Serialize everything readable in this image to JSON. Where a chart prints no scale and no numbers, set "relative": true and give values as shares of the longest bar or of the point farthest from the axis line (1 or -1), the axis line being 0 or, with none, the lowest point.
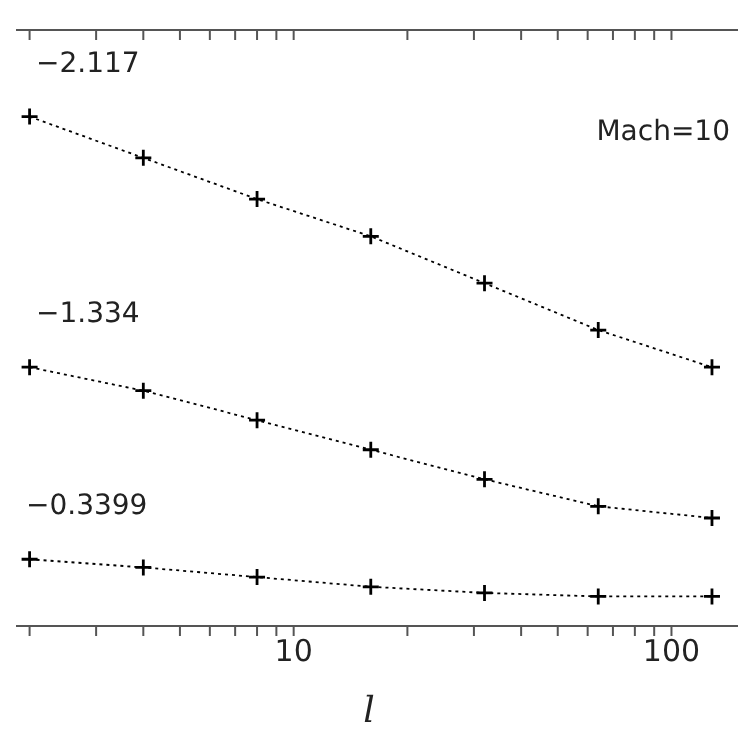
{
  "chart_data": {
    "type": "line",
    "xlabel": "l",
    "log": "x",
    "relative": true,
    "marker": "cross",
    "line_style": "dotted",
    "tick_labels": "x",
    "x": [
      2,
      4,
      8,
      16,
      32,
      64,
      128
    ],
    "xlim": [
      1.67,
      150
    ],
    "xticks": [
      {
        "value": 2,
        "label": null
      },
      {
        "value": 3,
        "label": null
      },
      {
        "value": 4,
        "label": null
      },
      {
        "value": 5,
        "label": null
      },
      {
        "value": 6,
        "label": null
      },
      {
        "value": 7,
        "label": null
      },
      {
        "value": 8,
        "label": null
      },
      {
        "value": 9,
        "label": null
      },
      10,
      {
        "value": 20,
        "label": null
      },
      {
        "value": 30,
        "label": null
      },
      {
        "value": 40,
        "label": null
      },
      {
        "value": 50,
        "label": null
      },
      {
        "value": 60,
        "label": null
      },
      {
        "value": 70,
        "label": null
      },
      {
        "value": 80,
        "label": null
      },
      {
        "value": 90,
        "label": null
      },
      100
    ],
    "series": [
      {
        "color": "#000000",
        "values": [
          1,
          0.919,
          0.838,
          0.765,
          0.673,
          0.581,
          0.508
        ]
      },
      {
        "color": "#000000",
        "values": [
          0.508,
          0.462,
          0.404,
          0.346,
          0.288,
          0.235,
          0.212
        ]
      },
      {
        "color": "#000000",
        "values": [
          0.131,
          0.115,
          0.096,
          0.077,
          0.065,
          0.058,
          0.058
        ]
      }
    ],
    "annotations": [
      "−2.117",
      "−1.334",
      "−0.3399",
      "Mach=10"
    ]
  }
}
